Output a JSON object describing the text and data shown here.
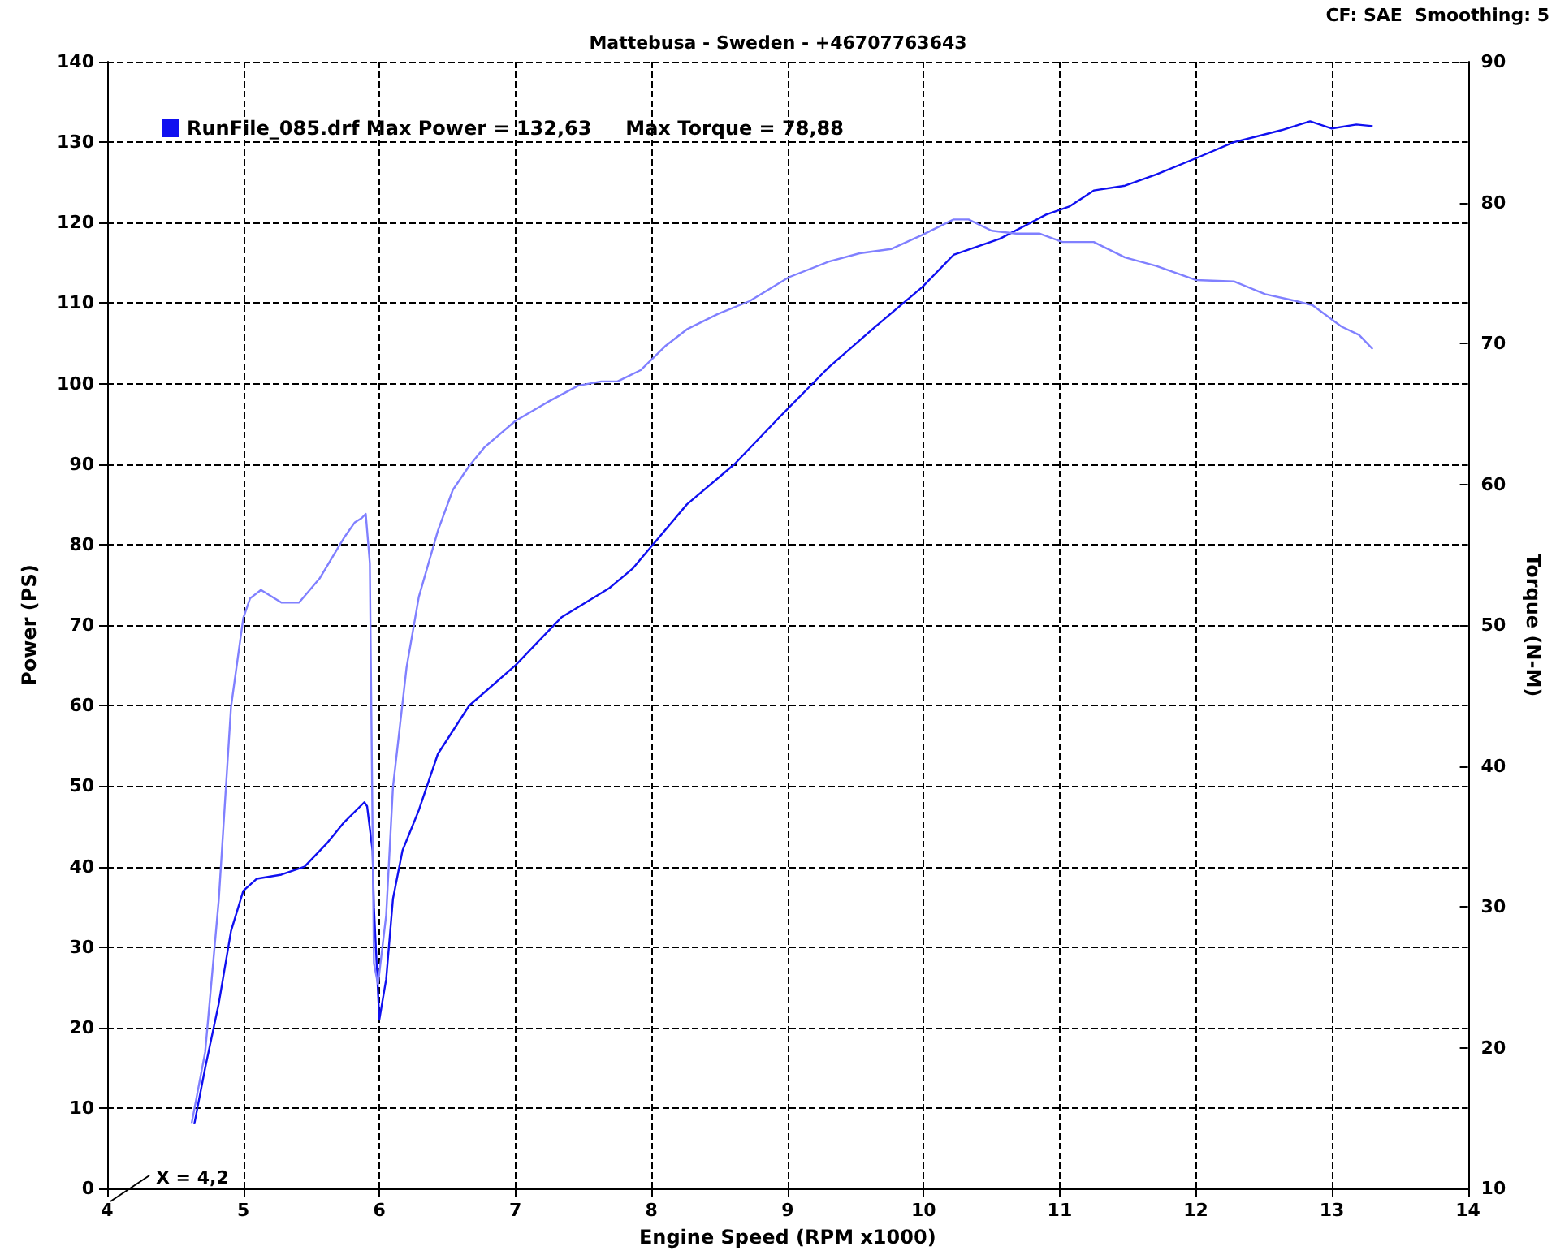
{
  "chart_data": {
    "type": "line",
    "title": "Mattebusa - Sweden - +46707763643",
    "xlabel": "Engine Speed (RPM x1000)",
    "ylabel": "Power (PS)",
    "y2label": "Torque (N-M)",
    "annotations": [
      "CF: SAE  Smoothing: 5",
      "X = 4,2"
    ],
    "xlim": [
      4,
      14
    ],
    "xticks": [
      4,
      5,
      6,
      7,
      8,
      9,
      10,
      11,
      12,
      13,
      14
    ],
    "ylim": [
      0,
      140
    ],
    "yticks": [
      0,
      10,
      20,
      30,
      40,
      50,
      60,
      70,
      80,
      90,
      100,
      110,
      120,
      130,
      140
    ],
    "y2lim": [
      10,
      90
    ],
    "y2ticks": [
      10,
      20,
      30,
      40,
      50,
      60,
      70,
      80,
      90
    ],
    "grid": true,
    "legend": "top left",
    "marker": "none",
    "line_style": "solid",
    "series": [
      {
        "name": "RunFile_085.drf Max Power = 132,63     Max Torque = 78,88",
        "color": "#1010f0",
        "x": [
          4.64,
          4.72,
          4.82,
          4.91,
          5.0,
          5.1,
          5.28,
          5.45,
          5.62,
          5.74,
          5.89,
          5.91,
          5.95,
          5.96,
          6.0,
          6.05,
          6.1,
          6.17,
          6.29,
          6.43,
          6.66,
          7.0,
          7.34,
          7.69,
          7.86,
          8.26,
          8.61,
          8.95,
          9.3,
          9.64,
          9.99,
          10.22,
          10.56,
          10.9,
          11.07,
          11.25,
          11.48,
          11.71,
          12.0,
          12.28,
          12.63,
          12.84,
          13.0,
          13.18,
          13.3
        ],
        "values": [
          8,
          15,
          23,
          32,
          37,
          38.5,
          39,
          40,
          43,
          45.5,
          48,
          47.5,
          42,
          35,
          21,
          26,
          36,
          42,
          47,
          54,
          60,
          65,
          71,
          74.6,
          77,
          85,
          90,
          96,
          102,
          107,
          112,
          116,
          118,
          121,
          122,
          124,
          124.6,
          126,
          128,
          130,
          131.5,
          132.6,
          131.7,
          132.2,
          132
        ]
      },
      {
        "color": "#8080ff",
        "axis": "y2",
        "x": [
          4.62,
          4.72,
          4.82,
          4.91,
          5.0,
          5.05,
          5.13,
          5.28,
          5.41,
          5.56,
          5.74,
          5.82,
          5.87,
          5.9,
          5.93,
          5.96,
          5.99,
          6.05,
          6.1,
          6.2,
          6.29,
          6.43,
          6.54,
          6.66,
          6.77,
          7.0,
          7.23,
          7.46,
          7.63,
          7.75,
          7.92,
          8.1,
          8.26,
          8.49,
          8.72,
          9.01,
          9.3,
          9.53,
          9.76,
          9.99,
          10.22,
          10.33,
          10.5,
          10.68,
          10.85,
          11.02,
          11.25,
          11.48,
          11.71,
          12.0,
          12.28,
          12.51,
          12.74,
          12.86,
          13.07,
          13.2,
          13.3
        ],
        "values": [
          14.6,
          19.7,
          30.5,
          44.2,
          50.5,
          51.9,
          52.5,
          51.6,
          51.6,
          53.3,
          56.2,
          57.3,
          57.6,
          57.9,
          54.4,
          26,
          24.5,
          29.4,
          38.5,
          47,
          52,
          56.7,
          59.6,
          61.3,
          62.6,
          64.5,
          65.8,
          67,
          67.3,
          67.3,
          68.1,
          69.8,
          71,
          72.1,
          73,
          74.7,
          75.8,
          76.4,
          76.7,
          77.7,
          78.8,
          78.8,
          78,
          77.8,
          77.8,
          77.2,
          77.2,
          76.1,
          75.5,
          74.5,
          74.4,
          73.5,
          73,
          72.7,
          71.2,
          70.6,
          69.6
        ]
      }
    ]
  }
}
